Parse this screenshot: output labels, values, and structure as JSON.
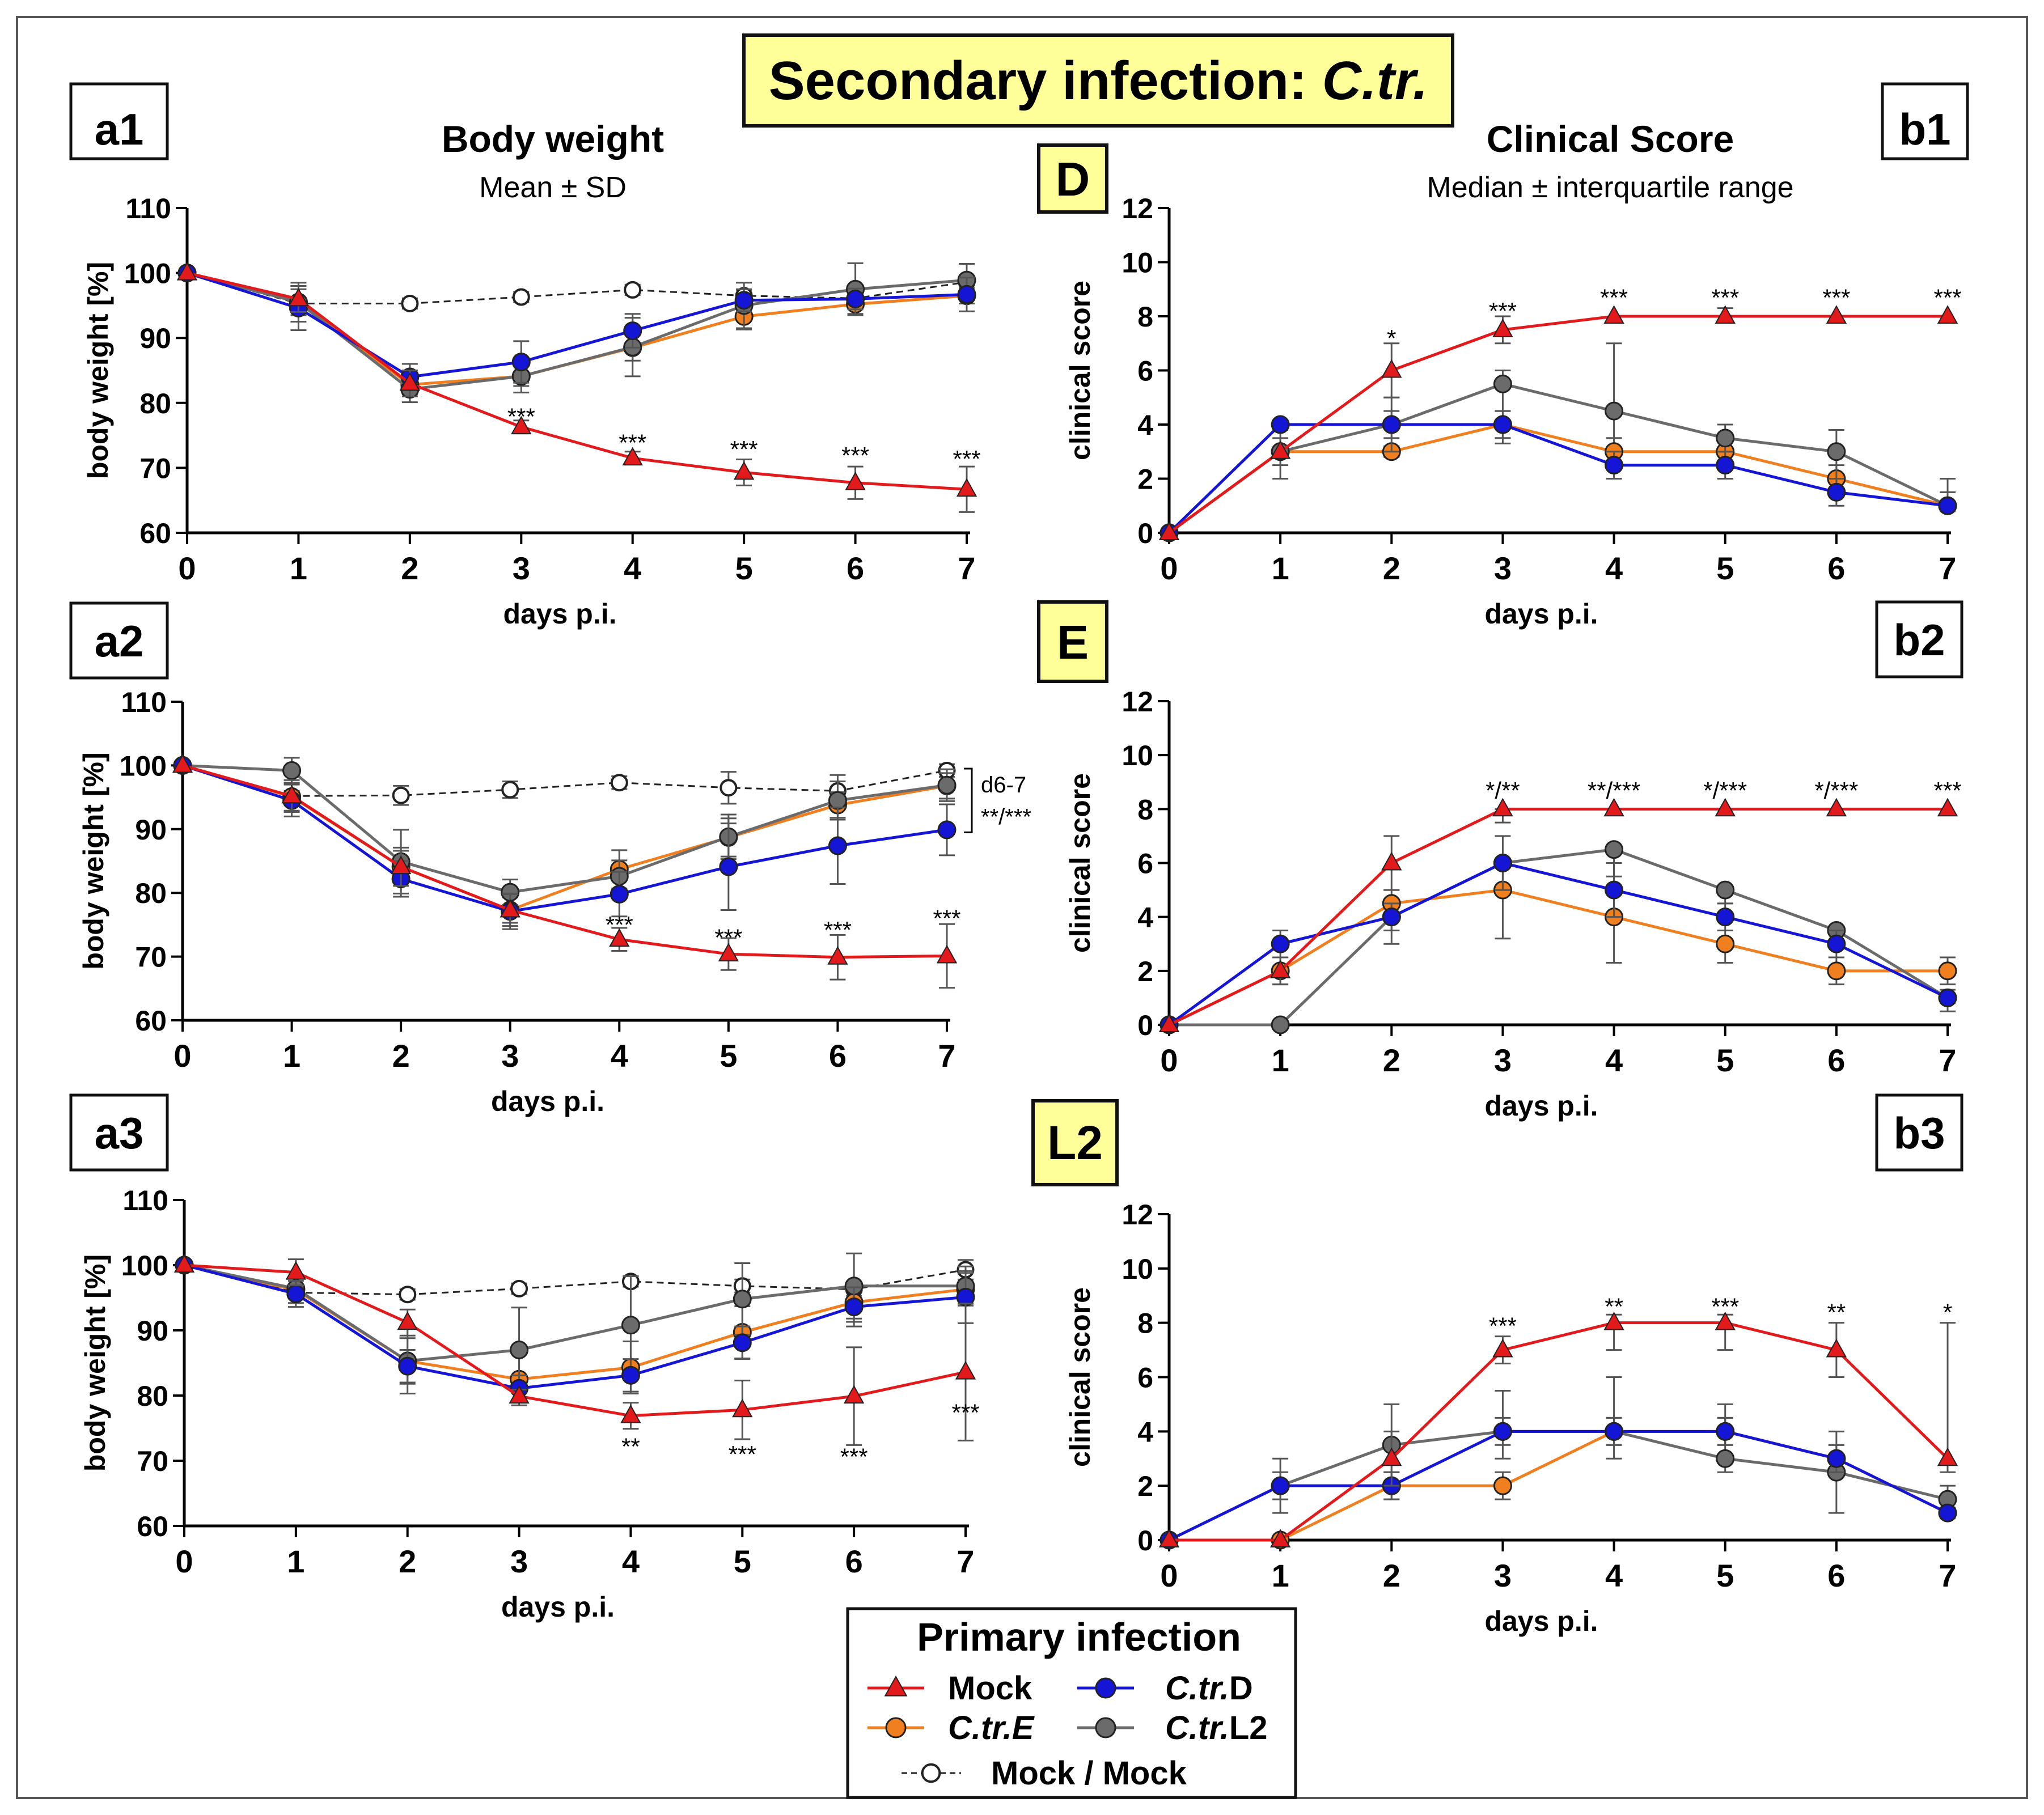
{
  "figure_title": "Secondary infection:",
  "figure_title_species": "C.tr.",
  "column_titles": {
    "body_weight": "Body weight",
    "body_weight_sub": "Mean ± SD",
    "clinical_score": "Clinical Score",
    "clinical_score_sub": "Median ± interquartile range"
  },
  "row_tags": [
    "D",
    "E",
    "L2"
  ],
  "legend": {
    "title": "Primary infection",
    "items": [
      {
        "key": "mock",
        "label": "Mock",
        "italic": false
      },
      {
        "key": "ctrD",
        "label_italic": "C.tr.",
        "label_plain": "D"
      },
      {
        "key": "ctrE",
        "label_italic": "C.tr.E",
        "label_plain": ""
      },
      {
        "key": "ctrL2",
        "label_italic": "C.tr.",
        "label_plain": "L2"
      },
      {
        "key": "mockmock",
        "label": "Mock / Mock",
        "italic": false
      }
    ]
  },
  "series_styles": {
    "mock": {
      "color": "#e31a1c",
      "marker": "triangle",
      "dashed": false
    },
    "ctrD": {
      "color": "#1515d6",
      "marker": "circle",
      "dashed": false
    },
    "ctrE": {
      "color": "#f07f1f",
      "marker": "circle",
      "dashed": false
    },
    "ctrL2": {
      "color": "#6b6b6b",
      "marker": "circle",
      "dashed": false
    },
    "mockmock": {
      "color": "#333333",
      "marker": "open-circle",
      "dashed": true
    }
  },
  "chart_data": [
    {
      "id": "a1",
      "panel_label": "a1",
      "type": "line",
      "xlabel": "days p.i.",
      "ylabel": "body weight [%]",
      "x": [
        0,
        1,
        2,
        3,
        4,
        5,
        6,
        7
      ],
      "xlim": [
        0,
        7
      ],
      "ylim": [
        60,
        110
      ],
      "yticks": [
        60,
        70,
        80,
        90,
        100,
        110
      ],
      "series": [
        {
          "key": "mockmock",
          "name": "Mock / Mock",
          "values": [
            100,
            95.3,
            95.3,
            96.3,
            97.4,
            96.5,
            96.1,
            98.6
          ],
          "err": [
            0,
            0.8,
            0.8,
            0.8,
            0.8,
            0.9,
            0.9,
            0.9
          ]
        },
        {
          "key": "ctrE",
          "name": "C.tr.E",
          "values": [
            100,
            95.5,
            82.8,
            84.1,
            88.5,
            93.3,
            95.2,
            96.5
          ],
          "err": [
            0,
            2.0,
            1.5,
            1.5,
            2.0,
            2.0,
            1.5,
            1.2
          ]
        },
        {
          "key": "ctrL2",
          "name": "C.tr.L2",
          "values": [
            100,
            95.5,
            82.1,
            84.1,
            88.6,
            95.0,
            97.5,
            98.9
          ],
          "err": [
            0,
            3.0,
            2.0,
            2.5,
            4.5,
            3.5,
            4.0,
            2.5
          ]
        },
        {
          "key": "ctrD",
          "name": "C.tr.D",
          "values": [
            100,
            94.6,
            84.0,
            86.3,
            91.1,
            95.8,
            96.0,
            96.7
          ],
          "err": [
            0,
            3.4,
            2.0,
            3.2,
            2.6,
            1.7,
            1.6,
            2.6
          ]
        },
        {
          "key": "mock",
          "name": "Mock",
          "values": [
            100,
            96.0,
            83.0,
            76.3,
            71.5,
            69.3,
            67.7,
            66.7
          ],
          "err": [
            0,
            2.0,
            2.0,
            1.0,
            1.0,
            2.0,
            2.5,
            3.5
          ]
        }
      ],
      "annotations": [
        {
          "x": 3,
          "y": 77.5,
          "text": "***"
        },
        {
          "x": 4,
          "y": 73.5,
          "text": "***"
        },
        {
          "x": 5,
          "y": 72.5,
          "text": "***"
        },
        {
          "x": 6,
          "y": 71.5,
          "text": "***"
        },
        {
          "x": 7,
          "y": 71.0,
          "text": "***"
        }
      ]
    },
    {
      "id": "a2",
      "panel_label": "a2",
      "type": "line",
      "xlabel": "days p.i.",
      "ylabel": "body weight [%]",
      "x": [
        0,
        1,
        2,
        3,
        4,
        5,
        6,
        7
      ],
      "xlim": [
        0,
        7
      ],
      "ylim": [
        60,
        110
      ],
      "yticks": [
        60,
        70,
        80,
        90,
        100,
        110
      ],
      "series": [
        {
          "key": "mockmock",
          "name": "Mock / Mock",
          "values": [
            100,
            95.2,
            95.3,
            96.2,
            97.3,
            96.5,
            96.0,
            99.2
          ],
          "err": [
            0,
            0.8,
            1.5,
            1.3,
            1.0,
            2.5,
            2.5,
            1.0
          ]
        },
        {
          "key": "ctrE",
          "name": "C.tr.E",
          "values": [
            100,
            95.1,
            84.1,
            77.3,
            83.7,
            88.7,
            93.8,
            96.8
          ],
          "err": [
            0,
            2.2,
            2.5,
            2.0,
            3.0,
            3.0,
            2.0,
            2.0
          ]
        },
        {
          "key": "ctrL2",
          "name": "C.tr.L2",
          "values": [
            100,
            99.2,
            84.9,
            80.1,
            82.6,
            88.8,
            94.5,
            96.9
          ],
          "err": [
            0,
            2.0,
            5.0,
            2.0,
            2.5,
            3.5,
            3.0,
            2.5
          ]
        },
        {
          "key": "ctrD",
          "name": "C.tr.D",
          "values": [
            100,
            94.5,
            82.2,
            77.1,
            79.8,
            84.1,
            87.4,
            89.9
          ],
          "err": [
            0,
            2.5,
            2.8,
            2.8,
            3.5,
            6.8,
            6.0,
            4.0
          ]
        },
        {
          "key": "mock",
          "name": "Mock",
          "values": [
            100,
            95.2,
            84.1,
            77.3,
            72.7,
            70.4,
            69.9,
            70.1
          ],
          "err": [
            0,
            2.5,
            3.0,
            2.5,
            1.8,
            2.5,
            3.5,
            5.0
          ]
        }
      ],
      "annotations": [
        {
          "x": 4,
          "y": 74.6,
          "text": "***"
        },
        {
          "x": 5,
          "y": 72.6,
          "text": "***"
        },
        {
          "x": 6,
          "y": 73.8,
          "text": "***"
        },
        {
          "x": 7,
          "y": 75.6,
          "text": "***"
        }
      ],
      "bracket_note": [
        "d6-7",
        "**/***"
      ]
    },
    {
      "id": "a3",
      "panel_label": "a3",
      "type": "line",
      "xlabel": "days p.i.",
      "ylabel": "body weight [%]",
      "x": [
        0,
        1,
        2,
        3,
        4,
        5,
        6,
        7
      ],
      "xlim": [
        0,
        7
      ],
      "ylim": [
        60,
        110
      ],
      "yticks": [
        60,
        70,
        80,
        90,
        100,
        110
      ],
      "series": [
        {
          "key": "mockmock",
          "name": "Mock / Mock",
          "values": [
            100,
            95.8,
            95.5,
            96.4,
            97.5,
            96.8,
            96.3,
            99.3
          ],
          "err": [
            0,
            0.8,
            0.8,
            0.8,
            0.8,
            1.0,
            1.0,
            1.5
          ]
        },
        {
          "key": "ctrE",
          "name": "C.tr.E",
          "values": [
            100,
            96.2,
            85.3,
            82.5,
            84.3,
            89.7,
            94.3,
            96.3
          ],
          "err": [
            0,
            2.0,
            3.5,
            4.0,
            4.0,
            4.0,
            3.0,
            2.5
          ]
        },
        {
          "key": "ctrL2",
          "name": "C.tr.L2",
          "values": [
            100,
            96.4,
            85.3,
            87.0,
            90.8,
            94.8,
            96.8,
            96.8
          ],
          "err": [
            0,
            1.5,
            5.0,
            6.5,
            7.5,
            5.5,
            5.0,
            3.0
          ]
        },
        {
          "key": "ctrD",
          "name": "C.tr.D",
          "values": [
            100,
            95.6,
            84.5,
            81.1,
            83.1,
            88.1,
            93.6,
            95.1
          ],
          "err": [
            0,
            2.0,
            2.5,
            2.0,
            2.5,
            2.5,
            3.0,
            4.0
          ]
        },
        {
          "key": "mock",
          "name": "Mock",
          "values": [
            100,
            98.9,
            91.2,
            79.9,
            76.9,
            77.8,
            79.9,
            83.6
          ],
          "err": [
            0,
            2.0,
            2.0,
            1.0,
            2.0,
            4.5,
            7.5,
            10.5
          ]
        }
      ],
      "annotations": [
        {
          "x": 4,
          "y": 71.8,
          "text": "**"
        },
        {
          "x": 5,
          "y": 70.6,
          "text": "***"
        },
        {
          "x": 6,
          "y": 70.2,
          "text": "***"
        },
        {
          "x": 7,
          "y": 77.0,
          "text": "***"
        }
      ]
    },
    {
      "id": "b1",
      "panel_label": "b1",
      "type": "line",
      "xlabel": "days p.i.",
      "ylabel": "clinical score",
      "x": [
        0,
        1,
        2,
        3,
        4,
        5,
        6,
        7
      ],
      "xlim": [
        0,
        7
      ],
      "ylim": [
        0,
        12
      ],
      "yticks": [
        0,
        2,
        4,
        6,
        8,
        10,
        12
      ],
      "series": [
        {
          "key": "ctrE",
          "name": "C.tr.E",
          "values": [
            0,
            3,
            3,
            4,
            3,
            3,
            2,
            1
          ],
          "lo": [
            0,
            2.5,
            2.8,
            3.5,
            2.5,
            2.5,
            1.5,
            0.8
          ],
          "hi": [
            0,
            3.5,
            3.2,
            4.5,
            3.5,
            3.5,
            2.5,
            1.5
          ]
        },
        {
          "key": "ctrL2",
          "name": "C.tr.L2",
          "values": [
            0,
            3,
            4,
            5.5,
            4.5,
            3.5,
            3,
            1
          ],
          "lo": [
            0,
            2.0,
            3.0,
            3.3,
            3.5,
            3.0,
            1.5,
            0.8
          ],
          "hi": [
            0,
            3.8,
            5.0,
            6.0,
            7.0,
            4.0,
            3.8,
            2.0
          ]
        },
        {
          "key": "ctrD",
          "name": "C.tr.D",
          "values": [
            0,
            4,
            4,
            4,
            2.5,
            2.5,
            1.5,
            1
          ],
          "lo": [
            0,
            4,
            3.5,
            3.5,
            2.0,
            2.0,
            1.0,
            0.8
          ],
          "hi": [
            0,
            4,
            4.5,
            4.5,
            3.0,
            3.0,
            2.0,
            1.5
          ]
        },
        {
          "key": "mock",
          "name": "Mock",
          "values": [
            0,
            3,
            6,
            7.5,
            8,
            8,
            8,
            8
          ],
          "lo": [
            0,
            3,
            5,
            7,
            8,
            8,
            8,
            8
          ],
          "hi": [
            0,
            3,
            7,
            8,
            8,
            8.3,
            8,
            8
          ]
        }
      ],
      "annotations": [
        {
          "x": 2,
          "y": 7.1,
          "text": "*"
        },
        {
          "x": 3,
          "y": 8.1,
          "text": "***"
        },
        {
          "x": 4,
          "y": 8.6,
          "text": "***"
        },
        {
          "x": 5,
          "y": 8.6,
          "text": "***"
        },
        {
          "x": 6,
          "y": 8.6,
          "text": "***"
        },
        {
          "x": 7,
          "y": 8.6,
          "text": "***"
        }
      ]
    },
    {
      "id": "b2",
      "panel_label": "b2",
      "type": "line",
      "xlabel": "days p.i.",
      "ylabel": "clinical score",
      "x": [
        0,
        1,
        2,
        3,
        4,
        5,
        6,
        7
      ],
      "xlim": [
        0,
        7
      ],
      "ylim": [
        0,
        12
      ],
      "yticks": [
        0,
        2,
        4,
        6,
        8,
        10,
        12
      ],
      "series": [
        {
          "key": "ctrE",
          "name": "C.tr.E",
          "values": [
            0,
            2,
            4.5,
            5,
            4,
            3,
            2,
            2
          ],
          "lo": [
            0,
            1.5,
            3.5,
            3.2,
            2.3,
            2.3,
            1.5,
            1.5
          ],
          "hi": [
            0,
            2.5,
            5.0,
            6.0,
            5.0,
            3.5,
            2.5,
            2.5
          ]
        },
        {
          "key": "ctrL2",
          "name": "C.tr.L2",
          "values": [
            0,
            0,
            4,
            6,
            6.5,
            5,
            3.5,
            1
          ],
          "lo": [
            0,
            0,
            3.0,
            5.0,
            5.5,
            4.5,
            3.0,
            0.5
          ]
        },
        {
          "key": "ctrD",
          "name": "C.tr.D",
          "values": [
            0,
            3,
            4,
            6,
            5,
            4,
            3,
            1
          ],
          "lo": [
            0,
            2.5,
            3.5,
            5.0,
            4.0,
            3.5,
            2.5,
            0.8
          ],
          "hi": [
            0,
            3.5,
            4.5,
            7.0,
            6.0,
            4.5,
            3.5,
            1.3
          ]
        },
        {
          "key": "mock",
          "name": "Mock",
          "values": [
            0,
            2,
            6,
            8,
            8,
            8,
            8,
            8
          ],
          "lo": [
            0,
            1.5,
            5.0,
            7.5,
            8,
            8,
            8,
            8
          ],
          "hi": [
            0,
            2.5,
            7.0,
            8,
            8,
            8,
            8,
            8
          ]
        }
      ],
      "annotations": [
        {
          "x": 3,
          "y": 8.6,
          "text": "*/**"
        },
        {
          "x": 4,
          "y": 8.6,
          "text": "**/***"
        },
        {
          "x": 5,
          "y": 8.6,
          "text": "*/***"
        },
        {
          "x": 6,
          "y": 8.6,
          "text": "*/***"
        },
        {
          "x": 7,
          "y": 8.6,
          "text": "***"
        }
      ]
    },
    {
      "id": "b3",
      "panel_label": "b3",
      "type": "line",
      "xlabel": "days p.i.",
      "ylabel": "clinical score",
      "x": [
        0,
        1,
        2,
        3,
        4,
        5,
        6,
        7
      ],
      "xlim": [
        0,
        7
      ],
      "ylim": [
        0,
        12
      ],
      "yticks": [
        0,
        2,
        4,
        6,
        8,
        10,
        12
      ],
      "series": [
        {
          "key": "ctrE",
          "name": "C.tr.E",
          "values": [
            0,
            0,
            2,
            2,
            4,
            4,
            3,
            1
          ],
          "lo": [
            0,
            0,
            1.5,
            1.5,
            3.5,
            3.5,
            2.5,
            0.8
          ],
          "hi": [
            0,
            0,
            2.5,
            2.5,
            4.5,
            4.5,
            3.5,
            1.2
          ]
        },
        {
          "key": "ctrL2",
          "name": "C.tr.L2",
          "values": [
            0,
            2,
            3.5,
            4,
            4,
            3,
            2.5,
            1.5
          ],
          "lo": [
            0,
            1.0,
            2.0,
            3.0,
            3.0,
            2.5,
            1.0,
            1.0
          ],
          "hi": [
            0,
            3.0,
            5.0,
            5.5,
            6.0,
            5.0,
            4.0,
            2.0
          ]
        },
        {
          "key": "ctrD",
          "name": "C.tr.D",
          "values": [
            0,
            2,
            2,
            4,
            4,
            4,
            3,
            1
          ],
          "lo": [
            0,
            1.5,
            1.5,
            3.5,
            3.5,
            3.5,
            2.5,
            0.8
          ],
          "hi": [
            0,
            2.5,
            2.5,
            4.5,
            4.5,
            4.5,
            3.5,
            1.2
          ]
        },
        {
          "key": "mock",
          "name": "Mock",
          "values": [
            0,
            0,
            3,
            7,
            8,
            8,
            7,
            3
          ],
          "lo": [
            0,
            0,
            2.0,
            6.5,
            7.0,
            7.0,
            6.0,
            2.5
          ],
          "hi": [
            0,
            0,
            4.0,
            7.5,
            8.3,
            8.3,
            8.0,
            8.0
          ]
        }
      ],
      "annotations": [
        {
          "x": 3,
          "y": 7.8,
          "text": "***"
        },
        {
          "x": 4,
          "y": 8.5,
          "text": "**"
        },
        {
          "x": 5,
          "y": 8.5,
          "text": "***"
        },
        {
          "x": 6,
          "y": 8.3,
          "text": "**"
        },
        {
          "x": 7,
          "y": 8.3,
          "text": "*"
        }
      ]
    }
  ]
}
